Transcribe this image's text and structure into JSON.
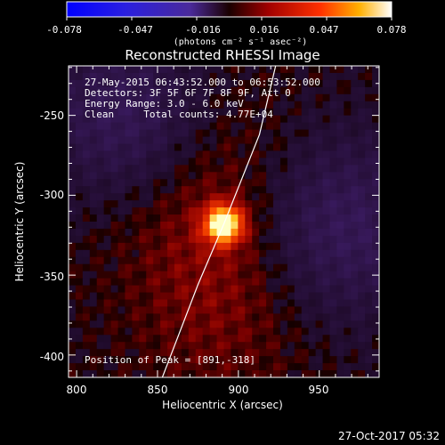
{
  "colorbar": {
    "ticks": [
      "-0.078",
      "-0.047",
      "-0.016",
      "0.016",
      "0.047",
      "0.078"
    ],
    "units_label": "(photons cm⁻² s⁻¹ asec⁻²)"
  },
  "footer": {
    "timestamp": "27-Oct-2017 05:32"
  },
  "colors": {
    "peak": "#ffffc8",
    "low": "#3c2878",
    "background": "#000000"
  },
  "chart_data": {
    "type": "heatmap",
    "title": "Reconstructed RHESSI Image",
    "xlabel": "Heliocentric X (arcsec)",
    "ylabel": "Heliocentric Y (arcsec)",
    "xlim": [
      795,
      987
    ],
    "ylim": [
      -414,
      -219
    ],
    "x_ticks": [
      "800",
      "850",
      "900",
      "950"
    ],
    "y_ticks": [
      "-250",
      "-300",
      "-350",
      "-400"
    ],
    "x_tick_values": [
      800,
      850,
      900,
      950
    ],
    "y_tick_values": [
      -250,
      -300,
      -350,
      -400
    ],
    "value_range": [
      -0.078,
      0.078
    ],
    "annotations": [
      "27-May-2015 06:43:52.000 to 06:53:52.000",
      "Detectors: 3F 5F 6F 7F 8F 9F, Att 0",
      "Energy Range: 3.0 - 6.0 keV",
      "Clean     Total counts: 4.77E+04",
      "Position of Peak = [891,-318]"
    ],
    "peak": {
      "x": 891,
      "y": -318
    },
    "limb_curve": [
      [
        853,
        -414
      ],
      [
        875,
        -356
      ],
      [
        891,
        -318
      ],
      [
        913,
        -262
      ],
      [
        923,
        -219
      ]
    ]
  }
}
